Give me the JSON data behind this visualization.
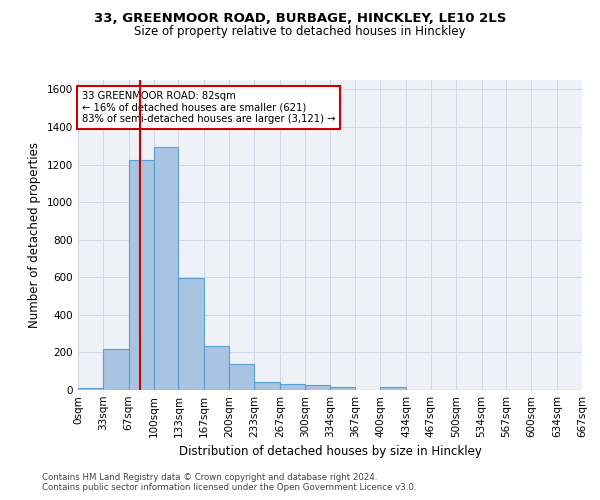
{
  "title1": "33, GREENMOOR ROAD, BURBAGE, HINCKLEY, LE10 2LS",
  "title2": "Size of property relative to detached houses in Hinckley",
  "xlabel": "Distribution of detached houses by size in Hinckley",
  "ylabel": "Number of detached properties",
  "bin_labels": [
    "0sqm",
    "33sqm",
    "67sqm",
    "100sqm",
    "133sqm",
    "167sqm",
    "200sqm",
    "233sqm",
    "267sqm",
    "300sqm",
    "334sqm",
    "367sqm",
    "400sqm",
    "434sqm",
    "467sqm",
    "500sqm",
    "534sqm",
    "567sqm",
    "600sqm",
    "634sqm",
    "667sqm"
  ],
  "bar_values": [
    10,
    220,
    1225,
    1295,
    595,
    235,
    140,
    45,
    30,
    25,
    15,
    0,
    15,
    0,
    0,
    0,
    0,
    0,
    0,
    0,
    0
  ],
  "bar_color": "#a8c4e0",
  "bar_edge_color": "#5a9fd4",
  "grid_color": "#d0d8e8",
  "background_color": "#eef2f8",
  "vline_x": 82,
  "vline_color": "#cc0000",
  "annotation_text": "33 GREENMOOR ROAD: 82sqm\n← 16% of detached houses are smaller (621)\n83% of semi-detached houses are larger (3,121) →",
  "annotation_box_color": "#cc0000",
  "footnote1": "Contains HM Land Registry data © Crown copyright and database right 2024.",
  "footnote2": "Contains public sector information licensed under the Open Government Licence v3.0.",
  "ylim": [
    0,
    1650
  ],
  "yticks": [
    0,
    200,
    400,
    600,
    800,
    1000,
    1200,
    1400,
    1600
  ],
  "bin_edges": [
    0,
    33,
    67,
    100,
    133,
    167,
    200,
    233,
    267,
    300,
    334,
    367,
    400,
    434,
    467,
    500,
    534,
    567,
    600,
    634,
    667
  ],
  "property_sqm": 82,
  "title1_fontsize": 9.5,
  "title2_fontsize": 8.5,
  "ylabel_fontsize": 8.5,
  "xlabel_fontsize": 8.5,
  "tick_fontsize": 7.5,
  "footnote_fontsize": 6.2
}
